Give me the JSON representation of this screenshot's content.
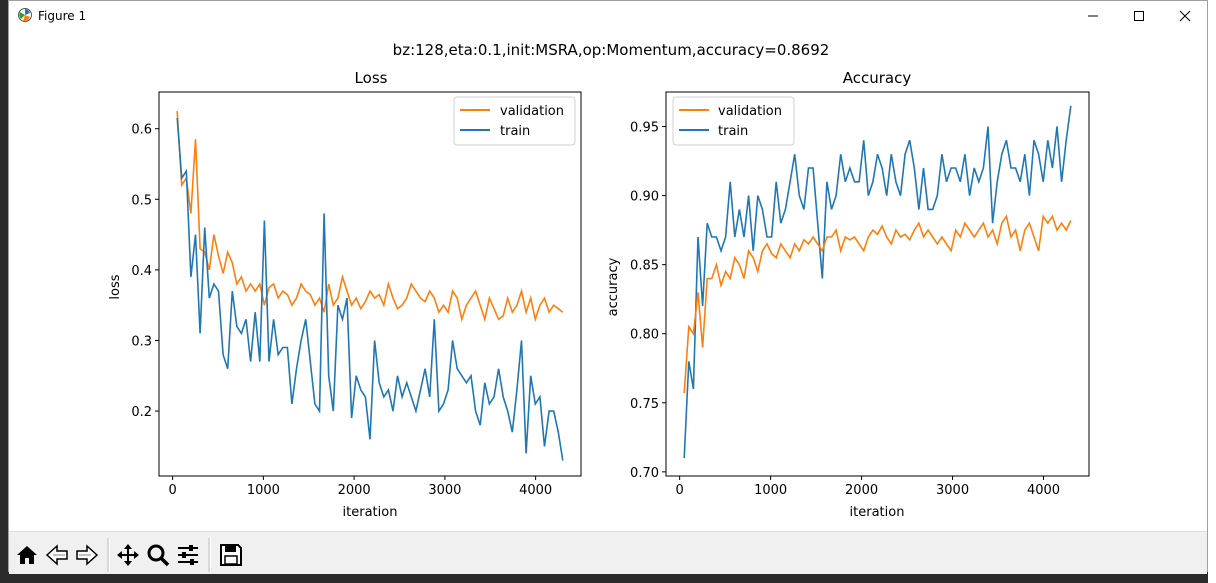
{
  "window": {
    "title": "Figure 1"
  },
  "figure": {
    "suptitle": "bz:128,eta:0.1,init:MSRA,op:Momentum,accuracy=0.8692"
  },
  "toolbar": {
    "buttons": [
      "home-icon",
      "back-icon",
      "forward-icon",
      "pan-icon",
      "zoom-icon",
      "configure-subplots-icon",
      "save-icon"
    ]
  },
  "chart_data": [
    {
      "type": "line",
      "title": "Loss",
      "xlabel": "iteration",
      "ylabel": "loss",
      "xlim": [
        -150,
        4500
      ],
      "ylim": [
        0.108,
        0.652
      ],
      "xticks": [
        0,
        1000,
        2000,
        3000,
        4000
      ],
      "yticks": [
        0.2,
        0.3,
        0.4,
        0.5,
        0.6
      ],
      "ytick_labels": [
        "0.2",
        "0.3",
        "0.4",
        "0.5",
        "0.6"
      ],
      "legend_position": "upper right",
      "series": [
        {
          "name": "validation",
          "color": "#ff7f0e",
          "values": [
            0.625,
            0.52,
            0.53,
            0.48,
            0.585,
            0.43,
            0.425,
            0.4,
            0.45,
            0.42,
            0.395,
            0.425,
            0.41,
            0.38,
            0.39,
            0.37,
            0.38,
            0.37,
            0.38,
            0.35,
            0.375,
            0.38,
            0.36,
            0.37,
            0.365,
            0.35,
            0.36,
            0.38,
            0.37,
            0.365,
            0.35,
            0.36,
            0.34,
            0.38,
            0.35,
            0.36,
            0.39,
            0.37,
            0.35,
            0.36,
            0.345,
            0.355,
            0.37,
            0.36,
            0.365,
            0.35,
            0.38,
            0.36,
            0.345,
            0.35,
            0.36,
            0.38,
            0.37,
            0.36,
            0.355,
            0.37,
            0.36,
            0.34,
            0.35,
            0.34,
            0.37,
            0.36,
            0.33,
            0.35,
            0.36,
            0.37,
            0.35,
            0.33,
            0.36,
            0.345,
            0.33,
            0.335,
            0.36,
            0.34,
            0.35,
            0.37,
            0.34,
            0.36,
            0.33,
            0.35,
            0.36,
            0.34,
            0.35,
            0.345,
            0.34
          ]
        },
        {
          "name": "train",
          "color": "#1f77b4",
          "values": [
            0.615,
            0.53,
            0.54,
            0.39,
            0.45,
            0.31,
            0.46,
            0.36,
            0.38,
            0.37,
            0.28,
            0.26,
            0.37,
            0.32,
            0.31,
            0.33,
            0.27,
            0.34,
            0.27,
            0.47,
            0.27,
            0.33,
            0.28,
            0.29,
            0.29,
            0.21,
            0.26,
            0.3,
            0.33,
            0.27,
            0.21,
            0.2,
            0.48,
            0.25,
            0.2,
            0.35,
            0.33,
            0.36,
            0.19,
            0.25,
            0.23,
            0.22,
            0.16,
            0.3,
            0.24,
            0.22,
            0.23,
            0.2,
            0.25,
            0.22,
            0.24,
            0.22,
            0.2,
            0.23,
            0.26,
            0.22,
            0.33,
            0.2,
            0.21,
            0.23,
            0.3,
            0.26,
            0.25,
            0.24,
            0.25,
            0.2,
            0.18,
            0.24,
            0.21,
            0.22,
            0.26,
            0.22,
            0.2,
            0.17,
            0.23,
            0.3,
            0.14,
            0.25,
            0.21,
            0.22,
            0.15,
            0.2,
            0.2,
            0.17,
            0.13
          ]
        }
      ]
    },
    {
      "type": "line",
      "title": "Accuracy",
      "xlabel": "iteration",
      "ylabel": "accuracy",
      "xlim": [
        -150,
        4500
      ],
      "ylim": [
        0.697,
        0.975
      ],
      "xticks": [
        0,
        1000,
        2000,
        3000,
        4000
      ],
      "yticks": [
        0.7,
        0.75,
        0.8,
        0.85,
        0.9,
        0.95
      ],
      "ytick_labels": [
        "0.70",
        "0.75",
        "0.80",
        "0.85",
        "0.90",
        "0.95"
      ],
      "legend_position": "upper left",
      "series": [
        {
          "name": "validation",
          "color": "#ff7f0e",
          "values": [
            0.757,
            0.805,
            0.8,
            0.83,
            0.79,
            0.84,
            0.84,
            0.85,
            0.835,
            0.845,
            0.84,
            0.855,
            0.85,
            0.84,
            0.86,
            0.855,
            0.845,
            0.86,
            0.865,
            0.858,
            0.855,
            0.865,
            0.86,
            0.855,
            0.865,
            0.86,
            0.868,
            0.865,
            0.87,
            0.865,
            0.86,
            0.87,
            0.87,
            0.875,
            0.86,
            0.87,
            0.868,
            0.87,
            0.865,
            0.86,
            0.87,
            0.875,
            0.872,
            0.878,
            0.87,
            0.865,
            0.875,
            0.87,
            0.872,
            0.868,
            0.875,
            0.88,
            0.87,
            0.875,
            0.87,
            0.865,
            0.87,
            0.865,
            0.86,
            0.875,
            0.87,
            0.88,
            0.875,
            0.87,
            0.875,
            0.88,
            0.87,
            0.875,
            0.865,
            0.88,
            0.885,
            0.87,
            0.875,
            0.86,
            0.875,
            0.88,
            0.87,
            0.86,
            0.885,
            0.88,
            0.885,
            0.875,
            0.88,
            0.875,
            0.882
          ]
        },
        {
          "name": "train",
          "color": "#1f77b4",
          "values": [
            0.71,
            0.78,
            0.76,
            0.87,
            0.82,
            0.88,
            0.87,
            0.87,
            0.86,
            0.87,
            0.91,
            0.87,
            0.89,
            0.87,
            0.9,
            0.86,
            0.9,
            0.89,
            0.87,
            0.87,
            0.91,
            0.88,
            0.89,
            0.91,
            0.93,
            0.9,
            0.89,
            0.92,
            0.92,
            0.88,
            0.84,
            0.91,
            0.89,
            0.9,
            0.93,
            0.91,
            0.92,
            0.91,
            0.91,
            0.94,
            0.9,
            0.91,
            0.93,
            0.92,
            0.9,
            0.93,
            0.91,
            0.9,
            0.93,
            0.94,
            0.92,
            0.89,
            0.92,
            0.89,
            0.89,
            0.9,
            0.93,
            0.91,
            0.92,
            0.92,
            0.91,
            0.93,
            0.9,
            0.92,
            0.91,
            0.92,
            0.95,
            0.88,
            0.91,
            0.93,
            0.94,
            0.92,
            0.92,
            0.91,
            0.93,
            0.9,
            0.94,
            0.93,
            0.91,
            0.94,
            0.92,
            0.95,
            0.91,
            0.94,
            0.965
          ]
        }
      ]
    }
  ]
}
